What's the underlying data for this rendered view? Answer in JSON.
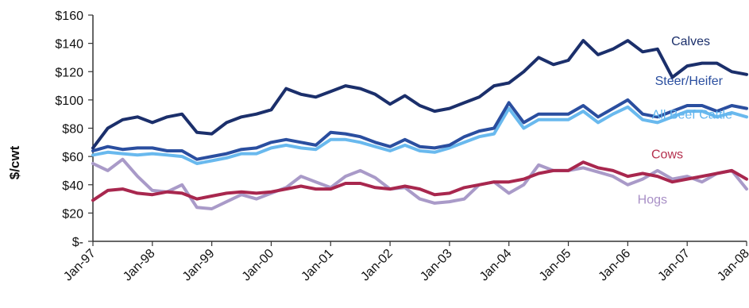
{
  "chart_data": {
    "type": "line",
    "title": "",
    "xlabel": "",
    "ylabel": "$/cwt",
    "ylim": [
      0,
      160
    ],
    "yticks": [
      0,
      20,
      40,
      60,
      80,
      100,
      120,
      140,
      160
    ],
    "ytick_labels": [
      "$-",
      "$20",
      "$40",
      "$60",
      "$80",
      "$100",
      "$120",
      "$140",
      "$160"
    ],
    "xlim": [
      "1997-01",
      "2008-01"
    ],
    "xtick_labels": [
      "Jan-97",
      "Jan-98",
      "Jan-99",
      "Jan-00",
      "Jan-01",
      "Jan-02",
      "Jan-03",
      "Jan-04",
      "Jan-05",
      "Jan-06",
      "Jan-07",
      "Jan-08"
    ],
    "grid": false,
    "legend": "inline labels",
    "x": [
      "1997-01",
      "1997-04",
      "1997-07",
      "1997-10",
      "1998-01",
      "1998-04",
      "1998-07",
      "1998-10",
      "1999-01",
      "1999-04",
      "1999-07",
      "1999-10",
      "2000-01",
      "2000-04",
      "2000-07",
      "2000-10",
      "2001-01",
      "2001-04",
      "2001-07",
      "2001-10",
      "2002-01",
      "2002-04",
      "2002-07",
      "2002-10",
      "2003-01",
      "2003-04",
      "2003-07",
      "2003-10",
      "2004-01",
      "2004-04",
      "2004-07",
      "2004-10",
      "2005-01",
      "2005-04",
      "2005-07",
      "2005-10",
      "2006-01",
      "2006-04",
      "2006-07",
      "2006-10",
      "2007-01",
      "2007-04",
      "2007-07",
      "2007-10",
      "2008-01"
    ],
    "series": [
      {
        "name": "Calves",
        "color": "#1b2f6b",
        "label_color": "#1b2f6b",
        "values": [
          66,
          80,
          86,
          88,
          84,
          88,
          90,
          77,
          76,
          84,
          88,
          90,
          93,
          108,
          104,
          102,
          106,
          110,
          108,
          104,
          97,
          103,
          96,
          92,
          94,
          98,
          102,
          110,
          112,
          120,
          130,
          125,
          128,
          142,
          132,
          136,
          142,
          134,
          136,
          116,
          124,
          126,
          126,
          120,
          118
        ]
      },
      {
        "name": "Steer/Heifer",
        "color": "#2a4e9f",
        "label_color": "#2a4e9f",
        "values": [
          64,
          67,
          65,
          66,
          66,
          64,
          64,
          58,
          60,
          62,
          65,
          66,
          70,
          72,
          70,
          68,
          77,
          76,
          74,
          70,
          67,
          72,
          67,
          66,
          68,
          74,
          78,
          80,
          98,
          84,
          90,
          90,
          90,
          96,
          88,
          94,
          100,
          90,
          88,
          92,
          96,
          96,
          92,
          96,
          94
        ]
      },
      {
        "name": "All Beef Cattle",
        "color": "#69b9ee",
        "label_color": "#5fb4ee",
        "values": [
          61,
          63,
          62,
          61,
          62,
          61,
          60,
          55,
          57,
          59,
          62,
          62,
          66,
          68,
          66,
          65,
          72,
          72,
          70,
          67,
          64,
          68,
          64,
          63,
          66,
          70,
          74,
          76,
          94,
          80,
          86,
          86,
          86,
          92,
          84,
          90,
          95,
          86,
          84,
          88,
          92,
          92,
          88,
          91,
          88
        ]
      },
      {
        "name": "Cows",
        "color": "#a8274e",
        "label_color": "#b5304e",
        "values": [
          29,
          36,
          37,
          34,
          33,
          35,
          34,
          30,
          32,
          34,
          35,
          34,
          35,
          37,
          39,
          37,
          37,
          41,
          41,
          38,
          37,
          39,
          37,
          33,
          34,
          38,
          40,
          42,
          42,
          44,
          48,
          50,
          50,
          56,
          52,
          50,
          46,
          48,
          46,
          42,
          44,
          46,
          48,
          50,
          44
        ]
      },
      {
        "name": "Hogs",
        "color": "#a99ac8",
        "label_color": "#a88fc6",
        "values": [
          55,
          50,
          58,
          46,
          36,
          35,
          40,
          24,
          23,
          28,
          33,
          30,
          34,
          38,
          46,
          42,
          38,
          46,
          50,
          45,
          37,
          38,
          30,
          27,
          28,
          30,
          40,
          42,
          34,
          40,
          54,
          50,
          50,
          52,
          49,
          46,
          40,
          44,
          50,
          44,
          46,
          42,
          48,
          50,
          37
        ]
      }
    ]
  }
}
